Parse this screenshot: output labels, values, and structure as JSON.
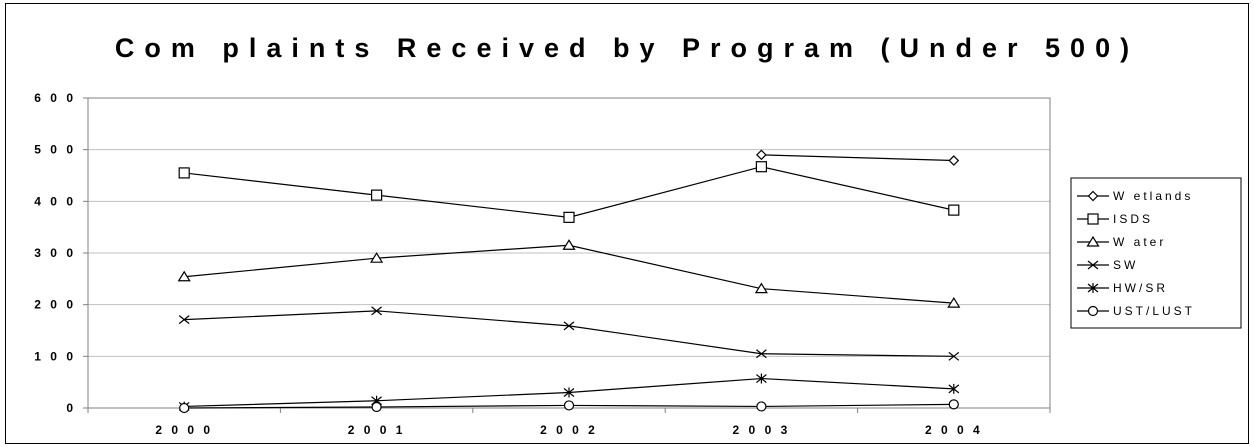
{
  "chart_data": {
    "type": "line",
    "title": "Com plaints Received by Program (Under 500)",
    "xlabel": "",
    "ylabel": "",
    "categories": [
      "2000",
      "2001",
      "2002",
      "2003",
      "2004"
    ],
    "ylim": [
      0,
      600
    ],
    "yticks": [
      "0",
      "100",
      "200",
      "300",
      "400",
      "500",
      "600"
    ],
    "grid": true,
    "legend_position": "right",
    "series": [
      {
        "name": "W etlands",
        "marker": "diamond",
        "values": [
          null,
          null,
          null,
          490,
          479
        ]
      },
      {
        "name": "ISDS",
        "marker": "square",
        "values": [
          455,
          412,
          369,
          467,
          383
        ]
      },
      {
        "name": "W ater",
        "marker": "triangle",
        "values": [
          254,
          290,
          315,
          231,
          203
        ]
      },
      {
        "name": "SW",
        "marker": "x",
        "values": [
          171,
          188,
          159,
          105,
          100
        ]
      },
      {
        "name": "HW/SR",
        "marker": "star",
        "values": [
          3,
          14,
          30,
          57,
          37
        ]
      },
      {
        "name": "UST/LUST",
        "marker": "circle",
        "values": [
          0,
          2,
          5,
          3,
          7
        ]
      }
    ]
  }
}
